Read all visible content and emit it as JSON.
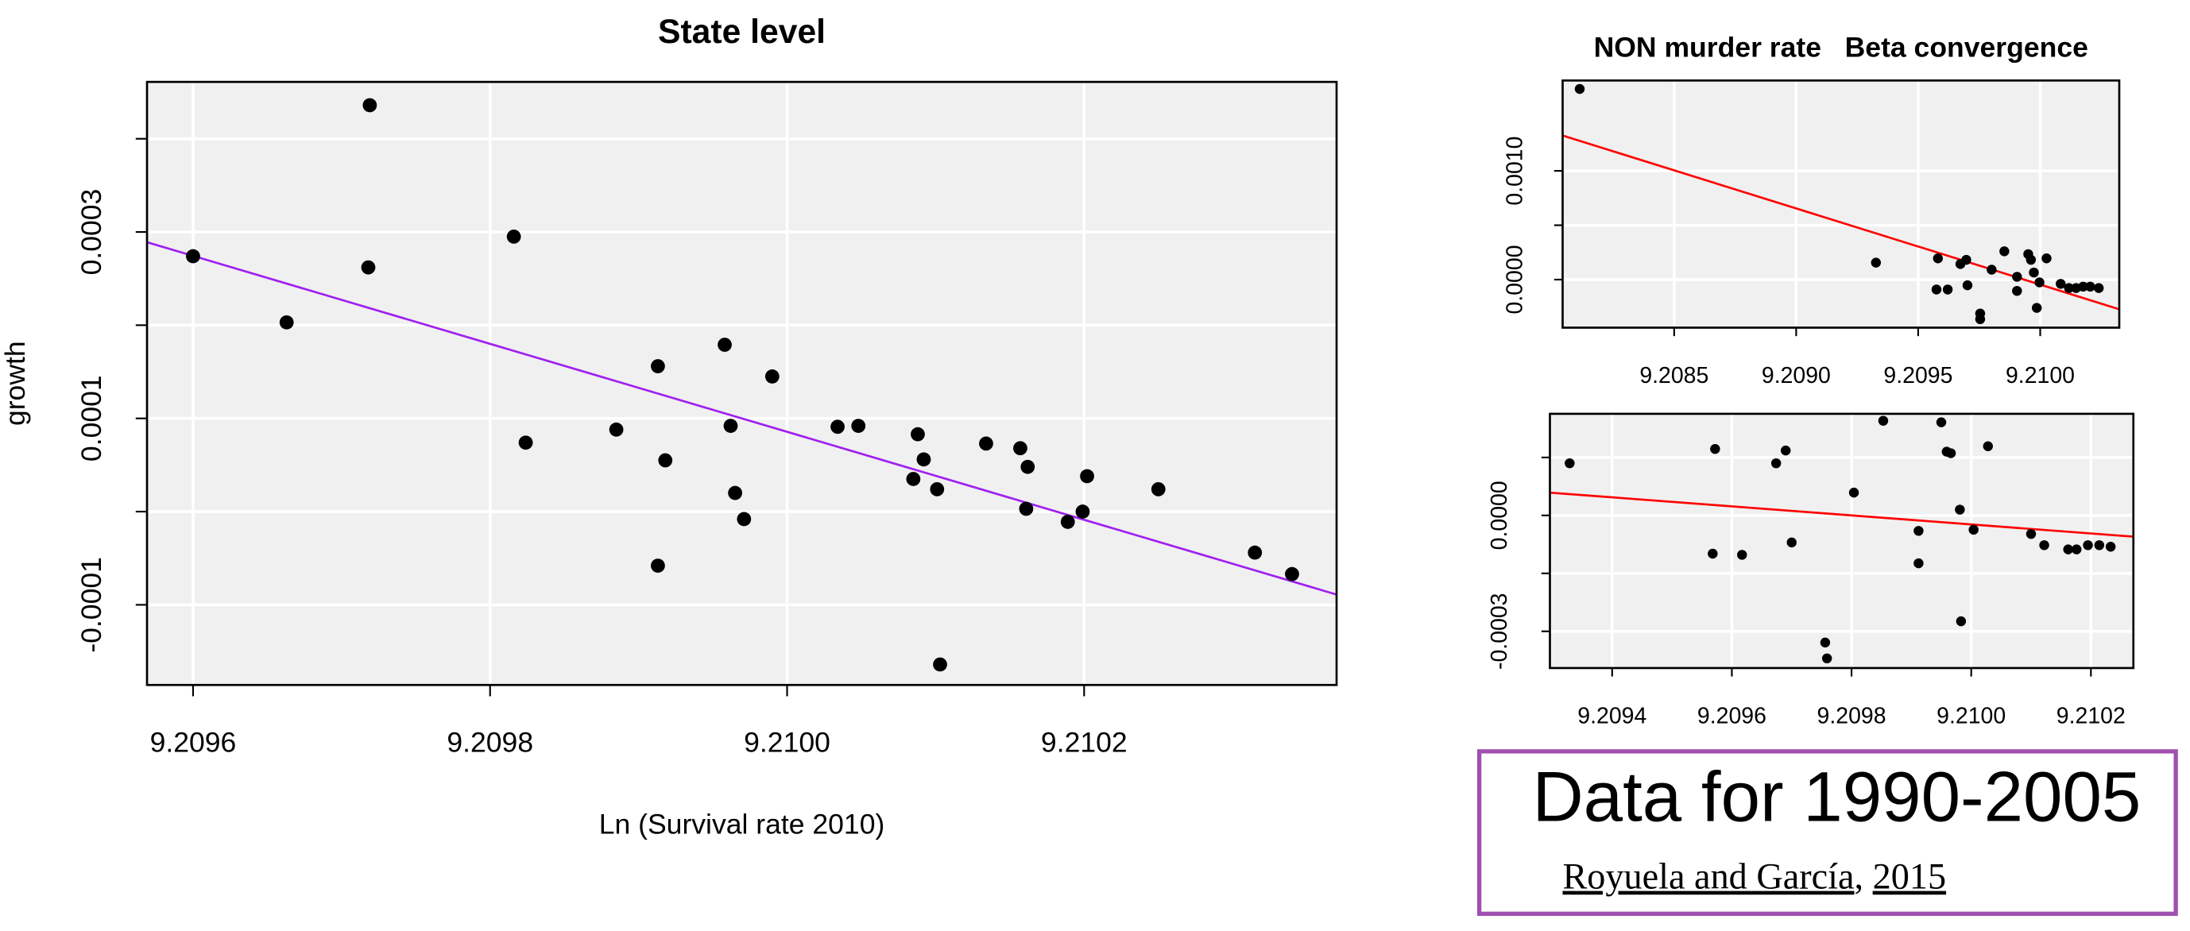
{
  "chart_data": [
    {
      "type": "scatter",
      "title": "State level",
      "ylabel": "growth",
      "xlabel": "Ln (Survival rate 2010)",
      "x": [
        9.2096,
        9.209663,
        9.209719,
        9.209718,
        9.209816,
        9.209824,
        9.209885,
        9.209913,
        9.209918,
        9.209913,
        9.209958,
        9.209962,
        9.209965,
        9.209971,
        9.20999,
        9.210034,
        9.210048,
        9.210088,
        9.210092,
        9.210085,
        9.210101,
        9.210103,
        9.210134,
        9.210157,
        9.210162,
        9.210161,
        9.210189,
        9.210199,
        9.210202,
        9.21025,
        9.210315,
        9.21034
      ],
      "values": [
        0.000274,
        0.000203,
        0.000436,
        0.000262,
        0.000295,
        7.4e-05,
        8.8e-05,
        0.000156,
        5.5e-05,
        -5.8e-05,
        0.000179,
        9.2e-05,
        2e-05,
        -8e-06,
        0.000145,
        9.1e-05,
        9.2e-05,
        8.3e-05,
        5.6e-05,
        3.5e-05,
        2.4e-05,
        -0.000164,
        7.3e-05,
        6.8e-05,
        4.8e-05,
        3e-06,
        -1.1e-05,
        0,
        3.8e-05,
        2.4e-05,
        -4.4e-05,
        -6.7e-05
      ],
      "color": "#000000",
      "trend": {
        "x": [
          9.209569,
          9.21037
        ],
        "y": [
          0.000289,
          -8.9e-05
        ],
        "color": "#a020f0"
      },
      "xlim": [
        9.209569,
        9.21037
      ],
      "xticks": [
        9.2096,
        9.2098,
        {
          "value": 9.21,
          "label": "9.2100"
        },
        9.2102
      ],
      "ylim": [
        -0.000186,
        0.000461
      ],
      "yticks": [
        {
          "value": -0.0001,
          "label": "-0.0001"
        },
        {
          "value": 0,
          "label": null
        },
        0.0001,
        {
          "value": 0.0002,
          "label": null
        },
        0.0003,
        {
          "value": 0.0004,
          "label": null
        }
      ],
      "grid": true
    },
    {
      "type": "scatter",
      "title": "NON murder rate   Beta convergence",
      "x": [
        9.208113,
        9.209327,
        9.209575,
        9.209581,
        9.209621,
        9.209673,
        9.209697,
        9.209702,
        9.209754,
        9.209754,
        9.209801,
        9.209853,
        9.209905,
        9.209905,
        9.209951,
        9.209962,
        9.209974,
        9.209986,
        9.209997,
        9.210026,
        9.210084,
        9.210118,
        9.210147,
        9.210176,
        9.210205,
        9.21024
      ],
      "values": [
        0.001753,
        0.000156,
        -9.1e-05,
        0.000195,
        -9.1e-05,
        0.000143,
        0.000182,
        -5.2e-05,
        -0.000312,
        -0.000364,
        9.1e-05,
        0.00026,
        2.6e-05,
        -0.000104,
        0.000234,
        0.000182,
        6.5e-05,
        -0.00026,
        -2.6e-05,
        0.000195,
        -3.9e-05,
        -7.8e-05,
        -7.8e-05,
        -6.5e-05,
        -6.5e-05,
        -7.8e-05
      ],
      "color": "#000000",
      "trend": {
        "x": [
          9.208043,
          9.210324
        ],
        "y": [
          0.001325,
          -0.000273
        ],
        "color": "#ff0000"
      },
      "xlim": [
        9.208043,
        9.210324
      ],
      "xticks": [
        9.2085,
        {
          "value": 9.209,
          "label": "9.2090"
        },
        9.2095,
        {
          "value": 9.21,
          "label": "9.2100"
        }
      ],
      "ylim": [
        -0.000442,
        0.001831
      ],
      "yticks": [
        {
          "value": 0,
          "label": "0.0000"
        },
        {
          "value": 0.0005,
          "label": null
        },
        {
          "value": 0.001,
          "label": "0.0010"
        }
      ],
      "grid": true
    },
    {
      "type": "scatter",
      "x": [
        9.209329,
        9.209572,
        9.209568,
        9.209617,
        9.209674,
        9.20969,
        9.2097,
        9.209756,
        9.209759,
        9.209804,
        9.209853,
        9.209912,
        9.209912,
        9.20995,
        9.209959,
        9.209966,
        9.209981,
        9.209983,
        9.210004,
        9.210028,
        9.2101,
        9.210122,
        9.210162,
        9.210176,
        9.210195,
        9.210214,
        9.210233
      ],
      "values": [
        0.000135,
        0.000172,
        -9.9e-05,
        -0.000102,
        0.000135,
        0.000168,
        -7e-05,
        -0.000329,
        -0.00037,
        5.9e-05,
        0.000245,
        -4e-05,
        -0.000124,
        0.000241,
        0.000165,
        0.000161,
        1.5e-05,
        -0.000274,
        -3.7e-05,
        0.000179,
        -4.8e-05,
        -7.7e-05,
        -8.8e-05,
        -8.8e-05,
        -7.7e-05,
        -7.7e-05,
        -8.1e-05
      ],
      "color": "#000000",
      "trend": {
        "x": [
          9.209296,
          9.210271
        ],
        "y": [
          5.9e-05,
          -5.5e-05
        ],
        "color": "#ff0000"
      },
      "xlim": [
        9.209296,
        9.210271
      ],
      "xticks": [
        9.2094,
        9.2096,
        9.2098,
        {
          "value": 9.21,
          "label": "9.2100"
        },
        9.2102
      ],
      "ylim": [
        -0.000395,
        0.000263
      ],
      "yticks": [
        {
          "value": -0.0003,
          "label": "-0.0003"
        },
        {
          "value": -0.00015,
          "label": null
        },
        {
          "value": 0,
          "label": "0.0000"
        },
        {
          "value": 0.00015,
          "label": null
        }
      ],
      "grid": true
    }
  ],
  "note": {
    "heading": "Data for 1990-2005",
    "authors": "Royuela and García",
    "separator": ",",
    "year": "2015"
  }
}
